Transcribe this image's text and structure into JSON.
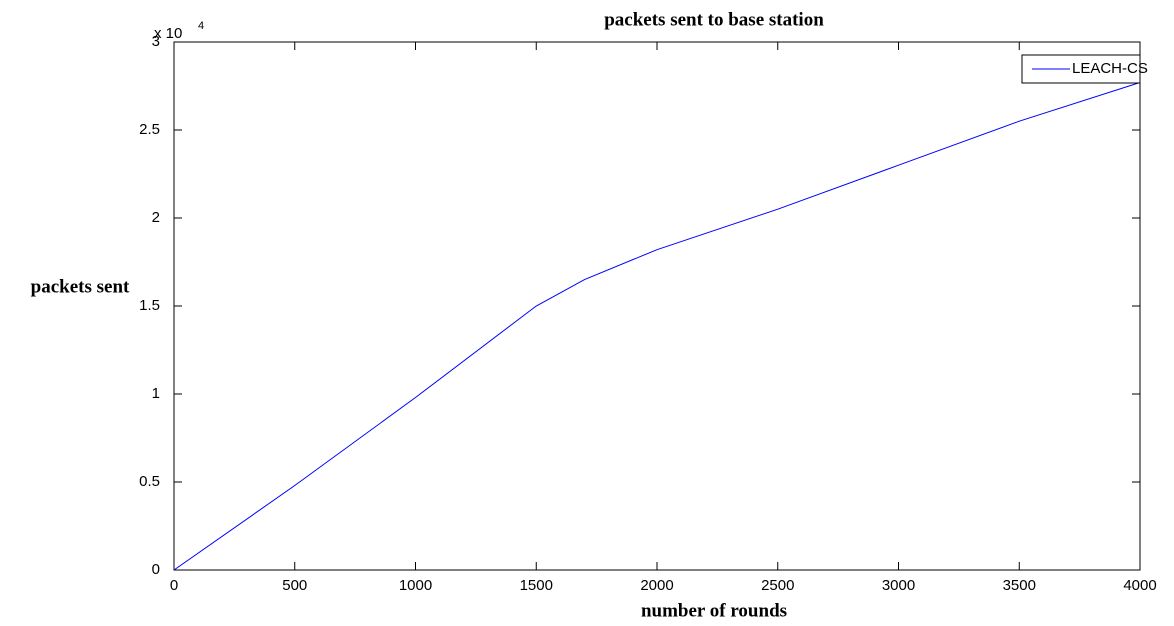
{
  "chart_data": {
    "type": "line",
    "title": "packets sent to base station",
    "xlabel": "number of rounds",
    "ylabel": "packets sent",
    "y_multiplier": "x 10",
    "y_exponent": "4",
    "x": [
      0,
      500,
      1000,
      1500,
      1700,
      2000,
      2500,
      3000,
      3500,
      4000
    ],
    "series": [
      {
        "name": "LEACH-CS",
        "color": "#0000ff",
        "values": [
          0,
          0.48,
          0.98,
          1.5,
          1.65,
          1.82,
          2.05,
          2.3,
          2.55,
          2.77
        ]
      }
    ],
    "xlim": [
      0,
      4000
    ],
    "xticks": [
      0,
      500,
      1000,
      1500,
      2000,
      2500,
      3000,
      3500,
      4000
    ],
    "ylim": [
      0,
      3
    ],
    "yticks": [
      0,
      0.5,
      1,
      1.5,
      2,
      2.5,
      3
    ],
    "grid": false,
    "legend": "upper right"
  }
}
